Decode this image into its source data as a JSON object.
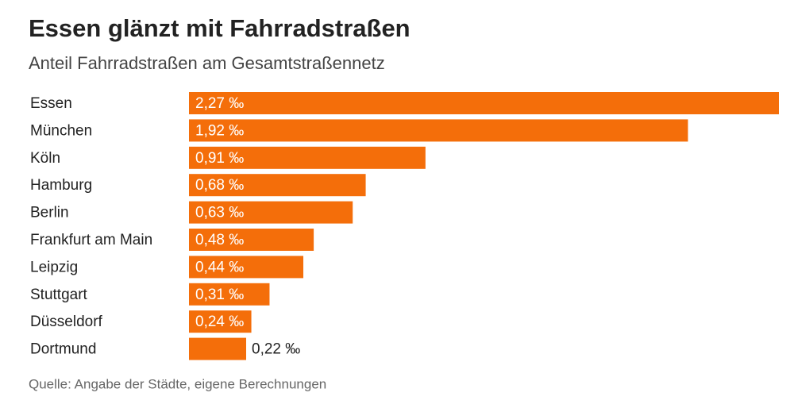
{
  "chart_data": {
    "type": "barh",
    "title": "Essen glänzt mit Fahrradstraßen",
    "subtitle": "Anteil Fahrradstraßen am Gesamtstraßennetz",
    "source": "Quelle: Angabe der Städte, eigene Berechnungen",
    "categories": [
      "Essen",
      "München",
      "Köln",
      "Hamburg",
      "Berlin",
      "Frankfurt am Main",
      "Leipzig",
      "Stuttgart",
      "Düsseldorf",
      "Dortmund"
    ],
    "values": [
      2.27,
      1.92,
      0.91,
      0.68,
      0.63,
      0.48,
      0.44,
      0.31,
      0.24,
      0.22
    ],
    "value_labels": [
      "2,27 ‰",
      "1,92 ‰",
      "0,91 ‰",
      "0,68 ‰",
      "0,63 ‰",
      "0,48 ‰",
      "0,44 ‰",
      "0,31 ‰",
      "0,24 ‰",
      "0,22 ‰"
    ],
    "color": "#f46e0a"
  }
}
